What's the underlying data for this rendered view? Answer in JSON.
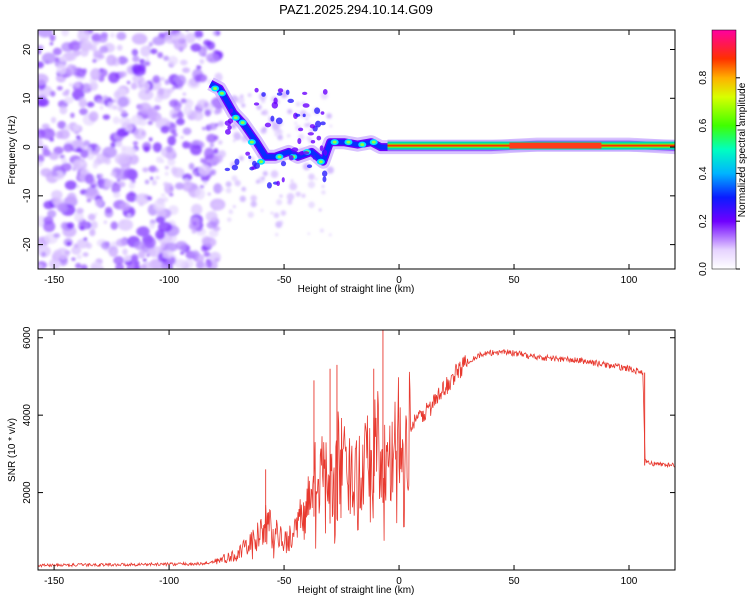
{
  "chart_data": [
    {
      "type": "heatmap",
      "title": "PAZ1.2025.294.10.14.G09",
      "xlabel": "Height of straight line (km)",
      "ylabel": "Frequency (Hz)",
      "xlim": [
        -157,
        120
      ],
      "ylim": [
        -25,
        24
      ],
      "xticks": [
        -150,
        -100,
        -50,
        0,
        50,
        100
      ],
      "xtick_labels": [
        "-150",
        "-100",
        "-50",
        "0",
        "50",
        "100"
      ],
      "yticks": [
        20,
        10,
        0,
        -10,
        -20
      ],
      "ytick_labels": [
        "20",
        "10",
        "0",
        "-10",
        "-20"
      ],
      "ridge": [
        {
          "x": -82,
          "f": 13
        },
        {
          "x": -78,
          "f": 12
        },
        {
          "x": -72,
          "f": 7
        },
        {
          "x": -68,
          "f": 5
        },
        {
          "x": -62,
          "f": 1
        },
        {
          "x": -58,
          "f": -2
        },
        {
          "x": -54,
          "f": -2
        },
        {
          "x": -48,
          "f": -1
        },
        {
          "x": -44,
          "f": -2
        },
        {
          "x": -38,
          "f": -1
        },
        {
          "x": -33,
          "f": -3
        },
        {
          "x": -30,
          "f": 1
        },
        {
          "x": -24,
          "f": 1
        },
        {
          "x": -18,
          "f": 0.5
        },
        {
          "x": -12,
          "f": 1
        },
        {
          "x": -8,
          "f": 0
        },
        {
          "x": 0,
          "f": 0
        },
        {
          "x": 20,
          "f": 0
        },
        {
          "x": 40,
          "f": 0
        },
        {
          "x": 60,
          "f": 0.5
        },
        {
          "x": 80,
          "f": 0.5
        },
        {
          "x": 100,
          "f": 0.5
        },
        {
          "x": 120,
          "f": 0
        }
      ],
      "colorbar": {
        "label": "Normalized spectral amplitude",
        "ticks": [
          0.0,
          0.2,
          0.4,
          0.6,
          0.8
        ],
        "tick_labels": [
          "0.0",
          "0.2",
          "0.4",
          "0.6",
          "0.8"
        ],
        "range": [
          0,
          1
        ]
      }
    },
    {
      "type": "line",
      "xlabel": "Height of straight line (km)",
      "ylabel": "SNR (10 * v/v)",
      "xlim": [
        -157,
        120
      ],
      "ylim": [
        0,
        6200
      ],
      "xticks": [
        -150,
        -100,
        -50,
        0,
        50,
        100
      ],
      "xtick_labels": [
        "-150",
        "-100",
        "-50",
        "0",
        "50",
        "100"
      ],
      "yticks": [
        2000,
        4000,
        6000
      ],
      "ytick_labels": [
        "2000",
        "4000",
        "6000"
      ],
      "color": "#e8392f",
      "series": [
        {
          "name": "SNR",
          "x": [
            -157,
            -120,
            -85,
            -78,
            -72,
            -67,
            -62,
            -58,
            -55,
            -50,
            -45,
            -40,
            -37,
            -33,
            -30,
            -27,
            -24,
            -20,
            -16,
            -12,
            -8,
            -5,
            -2,
            0,
            5,
            10,
            15,
            20,
            25,
            30,
            35,
            40,
            45,
            50,
            60,
            70,
            80,
            90,
            100,
            106,
            107,
            110,
            120
          ],
          "values": [
            120,
            140,
            160,
            250,
            350,
            550,
            800,
            1200,
            1000,
            700,
            1000,
            1700,
            2300,
            2500,
            2000,
            3000,
            2600,
            2300,
            3000,
            3400,
            3100,
            2500,
            3000,
            3500,
            3700,
            4000,
            4300,
            4700,
            5100,
            5400,
            5550,
            5600,
            5650,
            5600,
            5500,
            5450,
            5400,
            5300,
            5200,
            5100,
            2800,
            2750,
            2700
          ]
        }
      ],
      "spikes": [
        {
          "x": -58,
          "value": 2600
        },
        {
          "x": -37,
          "value": 4900
        },
        {
          "x": -30,
          "value": 5200
        },
        {
          "x": -27,
          "value": 5300
        },
        {
          "x": -7,
          "value": 6250
        },
        {
          "x": -11,
          "value": 5200
        }
      ]
    }
  ]
}
